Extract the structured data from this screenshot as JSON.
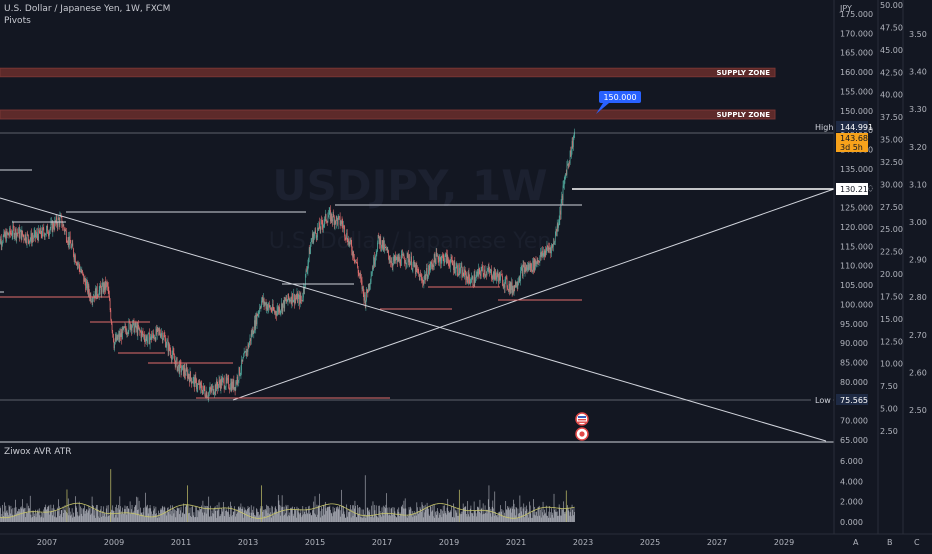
{
  "header": {
    "symbol_line": "U.S. Dollar / Japanese Yen, 1W, FXCM",
    "indicator": "Pivots"
  },
  "watermark": {
    "ticker": "USDJPY, 1W",
    "sub": "U.S. Dollar / Japanese Yen"
  },
  "currency_label": "JPY",
  "scale_letters": [
    "A",
    "B",
    "C"
  ],
  "price_axis": {
    "min": 65,
    "max": 175,
    "ticks": [
      "175.000",
      "170.000",
      "165.000",
      "160.000",
      "155.000",
      "150.000",
      "145.000",
      "140.000",
      "135.000",
      "130.000",
      "125.000",
      "120.000",
      "115.000",
      "110.000",
      "105.000",
      "100.000",
      "95.000",
      "90.000",
      "85.000",
      "80.000",
      "75.000",
      "70.000",
      "65.000"
    ]
  },
  "scale_b": {
    "ticks": [
      "50.00",
      "47.50",
      "45.00",
      "42.50",
      "40.00",
      "37.50",
      "35.00",
      "32.50",
      "30.00",
      "27.50",
      "25.00",
      "22.50",
      "20.00",
      "17.50",
      "15.00",
      "12.50",
      "10.00",
      "7.50",
      "5.00",
      "2.50"
    ]
  },
  "scale_c": {
    "ticks": [
      "3.50",
      "3.40",
      "3.30",
      "3.20",
      "3.10",
      "3.00",
      "2.90",
      "2.80",
      "2.70",
      "2.60",
      "2.50"
    ]
  },
  "time_axis": {
    "labels": [
      "2007",
      "2009",
      "2011",
      "2013",
      "2015",
      "2017",
      "2019",
      "2021",
      "2023",
      "2025",
      "2027",
      "2029"
    ]
  },
  "supply_zones": [
    {
      "label": "SUPPLY ZONE",
      "from": 158.8,
      "to": 161
    },
    {
      "label": "SUPPLY ZONE",
      "from": 147.9,
      "to": 150.2
    }
  ],
  "price_markers": {
    "target": "150.000",
    "high_label": "High",
    "high_value": "144.991",
    "current_value": "143.683",
    "countdown": "3d 5h",
    "level_value": "130.218",
    "low_label": "Low",
    "low_value": "75.565"
  },
  "indicator_pane": {
    "name": "Ziwox AVR ATR",
    "ticks": [
      "6.000",
      "4.000",
      "2.000",
      "0.000"
    ]
  },
  "colors": {
    "background": "#131722",
    "zone": "#6b2e2c",
    "candle_up": "#4fa59a",
    "candle_down": "#e06c6c",
    "accent_blue": "#2962ff",
    "current_price": "#f7a21b",
    "atr_line": "#c8c66a"
  },
  "chart_data": {
    "type": "candlestick",
    "symbol": "USD/JPY",
    "timeframe": "1W",
    "x_range": [
      2005.5,
      2030.2
    ],
    "y_range": [
      65,
      175
    ],
    "path": [
      [
        2005.5,
        116
      ],
      [
        2006.0,
        119
      ],
      [
        2006.5,
        117
      ],
      [
        2007.0,
        119
      ],
      [
        2007.4,
        122
      ],
      [
        2007.9,
        111
      ],
      [
        2008.3,
        102
      ],
      [
        2008.8,
        105
      ],
      [
        2009.0,
        90
      ],
      [
        2009.5,
        95
      ],
      [
        2010.0,
        91
      ],
      [
        2010.4,
        93
      ],
      [
        2010.9,
        84
      ],
      [
        2011.2,
        82
      ],
      [
        2011.5,
        79
      ],
      [
        2011.8,
        77
      ],
      [
        2012.2,
        80
      ],
      [
        2012.6,
        79
      ],
      [
        2013.0,
        89
      ],
      [
        2013.4,
        101
      ],
      [
        2013.8,
        98
      ],
      [
        2014.3,
        102
      ],
      [
        2014.6,
        101
      ],
      [
        2014.9,
        117
      ],
      [
        2015.4,
        123
      ],
      [
        2015.8,
        121
      ],
      [
        2016.2,
        112
      ],
      [
        2016.5,
        101
      ],
      [
        2016.9,
        117
      ],
      [
        2017.3,
        111
      ],
      [
        2017.8,
        112
      ],
      [
        2018.2,
        106
      ],
      [
        2018.6,
        112
      ],
      [
        2018.9,
        112
      ],
      [
        2019.4,
        108
      ],
      [
        2019.7,
        106
      ],
      [
        2020.0,
        109
      ],
      [
        2020.5,
        107
      ],
      [
        2020.9,
        104
      ],
      [
        2021.2,
        109
      ],
      [
        2021.5,
        110
      ],
      [
        2021.9,
        114
      ],
      [
        2022.1,
        115
      ],
      [
        2022.3,
        123
      ],
      [
        2022.5,
        135
      ],
      [
        2022.6,
        138
      ],
      [
        2022.75,
        144.5
      ]
    ],
    "atr": {
      "name": "Ziwox AVR ATR",
      "y_range": [
        0,
        6
      ],
      "spikes": [
        [
          2007.6,
          3.2
        ],
        [
          2008.9,
          5.2
        ],
        [
          2011.2,
          3.6
        ],
        [
          2013.4,
          3.6
        ],
        [
          2016.5,
          4.6
        ],
        [
          2020.2,
          3.6
        ],
        [
          2022.5,
          3.1
        ]
      ]
    }
  }
}
